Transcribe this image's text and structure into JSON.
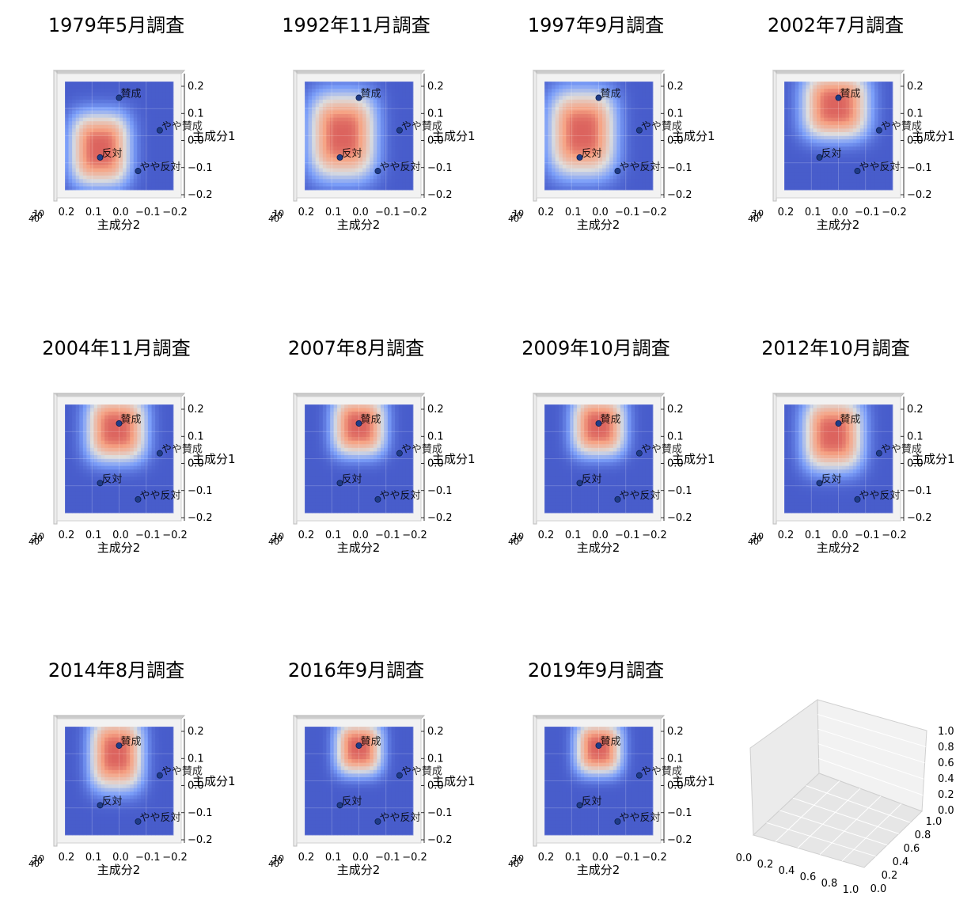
{
  "chart_data": {
    "type": "heatmap",
    "description_of_layout": "3x4 grid of 3D surface subplots viewed from top; 11 panels with data, last panel empty 3D axes",
    "xlabel": "主成分2",
    "ylabel": "主成分1",
    "x_ticks": [
      "0.2",
      "0.1",
      "0.0",
      "−0.1",
      "−0.2"
    ],
    "y_ticks": [
      "0.2",
      "0.1",
      "0.0",
      "−0.1",
      "−0.2"
    ],
    "z_ticks_visible": [
      "10",
      "20",
      "30",
      "40"
    ],
    "xlim": [
      0.2,
      -0.2
    ],
    "ylim": [
      -0.2,
      0.2
    ],
    "colormap": "coolwarm",
    "panels": [
      {
        "title": "1979年5月調査",
        "points": [
          {
            "label": "賛成",
            "pc2": 0.0,
            "pc1": 0.14
          },
          {
            "label": "やや賛成",
            "pc2": -0.15,
            "pc1": 0.02
          },
          {
            "label": "反対",
            "pc2": 0.07,
            "pc1": -0.08
          },
          {
            "label": "やや反対",
            "pc2": -0.07,
            "pc1": -0.13
          }
        ],
        "peak": {
          "pc2": 0.07,
          "pc1": -0.05,
          "sx": 0.09,
          "sy": 0.11
        }
      },
      {
        "title": "1992年11月調査",
        "points": [
          {
            "label": "賛成",
            "pc2": 0.0,
            "pc1": 0.14
          },
          {
            "label": "やや賛成",
            "pc2": -0.15,
            "pc1": 0.02
          },
          {
            "label": "反対",
            "pc2": 0.07,
            "pc1": -0.08
          },
          {
            "label": "やや反対",
            "pc2": -0.07,
            "pc1": -0.13
          }
        ],
        "peak": {
          "pc2": 0.06,
          "pc1": 0.0,
          "sx": 0.1,
          "sy": 0.13
        }
      },
      {
        "title": "1997年9月調査",
        "points": [
          {
            "label": "賛成",
            "pc2": 0.0,
            "pc1": 0.14
          },
          {
            "label": "やや賛成",
            "pc2": -0.15,
            "pc1": 0.02
          },
          {
            "label": "反対",
            "pc2": 0.07,
            "pc1": -0.08
          },
          {
            "label": "やや反対",
            "pc2": -0.07,
            "pc1": -0.13
          }
        ],
        "peak": {
          "pc2": 0.06,
          "pc1": 0.01,
          "sx": 0.1,
          "sy": 0.13
        }
      },
      {
        "title": "2002年7月調査",
        "points": [
          {
            "label": "賛成",
            "pc2": 0.0,
            "pc1": 0.14
          },
          {
            "label": "やや賛成",
            "pc2": -0.15,
            "pc1": 0.02
          },
          {
            "label": "反対",
            "pc2": 0.07,
            "pc1": -0.08
          },
          {
            "label": "やや反対",
            "pc2": -0.07,
            "pc1": -0.13
          }
        ],
        "peak": {
          "pc2": 0.01,
          "pc1": 0.11,
          "sx": 0.1,
          "sy": 0.1
        }
      },
      {
        "title": "2004年11月調査",
        "points": [
          {
            "label": "賛成",
            "pc2": 0.0,
            "pc1": 0.13
          },
          {
            "label": "やや賛成",
            "pc2": -0.15,
            "pc1": 0.02
          },
          {
            "label": "反対",
            "pc2": 0.07,
            "pc1": -0.09
          },
          {
            "label": "やや反対",
            "pc2": -0.07,
            "pc1": -0.15
          }
        ],
        "peak": {
          "pc2": 0.01,
          "pc1": 0.11,
          "sx": 0.09,
          "sy": 0.1
        }
      },
      {
        "title": "2007年8月調査",
        "points": [
          {
            "label": "賛成",
            "pc2": 0.0,
            "pc1": 0.13
          },
          {
            "label": "やや賛成",
            "pc2": -0.15,
            "pc1": 0.02
          },
          {
            "label": "反対",
            "pc2": 0.07,
            "pc1": -0.09
          },
          {
            "label": "やや反対",
            "pc2": -0.07,
            "pc1": -0.15
          }
        ],
        "peak": {
          "pc2": 0.0,
          "pc1": 0.12,
          "sx": 0.08,
          "sy": 0.09
        }
      },
      {
        "title": "2009年10月調査",
        "points": [
          {
            "label": "賛成",
            "pc2": 0.0,
            "pc1": 0.13
          },
          {
            "label": "やや賛成",
            "pc2": -0.15,
            "pc1": 0.02
          },
          {
            "label": "反対",
            "pc2": 0.07,
            "pc1": -0.09
          },
          {
            "label": "やや反対",
            "pc2": -0.07,
            "pc1": -0.15
          }
        ],
        "peak": {
          "pc2": 0.0,
          "pc1": 0.12,
          "sx": 0.08,
          "sy": 0.09
        }
      },
      {
        "title": "2012年10月調査",
        "points": [
          {
            "label": "賛成",
            "pc2": 0.0,
            "pc1": 0.13
          },
          {
            "label": "やや賛成",
            "pc2": -0.15,
            "pc1": 0.02
          },
          {
            "label": "反対",
            "pc2": 0.07,
            "pc1": -0.09
          },
          {
            "label": "やや反対",
            "pc2": -0.07,
            "pc1": -0.15
          }
        ],
        "peak": {
          "pc2": 0.02,
          "pc1": 0.09,
          "sx": 0.09,
          "sy": 0.11
        }
      },
      {
        "title": "2014年8月調査",
        "points": [
          {
            "label": "賛成",
            "pc2": 0.0,
            "pc1": 0.13
          },
          {
            "label": "やや賛成",
            "pc2": -0.15,
            "pc1": 0.02
          },
          {
            "label": "反対",
            "pc2": 0.07,
            "pc1": -0.09
          },
          {
            "label": "やや反対",
            "pc2": -0.07,
            "pc1": -0.15
          }
        ],
        "peak": {
          "pc2": 0.01,
          "pc1": 0.1,
          "sx": 0.08,
          "sy": 0.11
        }
      },
      {
        "title": "2016年9月調査",
        "points": [
          {
            "label": "賛成",
            "pc2": 0.0,
            "pc1": 0.13
          },
          {
            "label": "やや賛成",
            "pc2": -0.15,
            "pc1": 0.02
          },
          {
            "label": "反対",
            "pc2": 0.07,
            "pc1": -0.09
          },
          {
            "label": "やや反対",
            "pc2": -0.07,
            "pc1": -0.15
          }
        ],
        "peak": {
          "pc2": 0.0,
          "pc1": 0.12,
          "sx": 0.07,
          "sy": 0.08
        }
      },
      {
        "title": "2019年9月調査",
        "points": [
          {
            "label": "賛成",
            "pc2": 0.0,
            "pc1": 0.13
          },
          {
            "label": "やや賛成",
            "pc2": -0.15,
            "pc1": 0.02
          },
          {
            "label": "反対",
            "pc2": 0.07,
            "pc1": -0.09
          },
          {
            "label": "やや反対",
            "pc2": -0.07,
            "pc1": -0.15
          }
        ],
        "peak": {
          "pc2": 0.0,
          "pc1": 0.12,
          "sx": 0.07,
          "sy": 0.08
        }
      }
    ],
    "empty_panel": {
      "x_ticks": [
        "0.0",
        "0.2",
        "0.4",
        "0.6",
        "0.8",
        "1.0"
      ],
      "y_ticks": [
        "0.0",
        "0.2",
        "0.4",
        "0.6",
        "0.8",
        "1.0"
      ],
      "z_ticks": [
        "0.0",
        "0.2",
        "0.4",
        "0.6",
        "0.8",
        "1.0"
      ]
    }
  }
}
